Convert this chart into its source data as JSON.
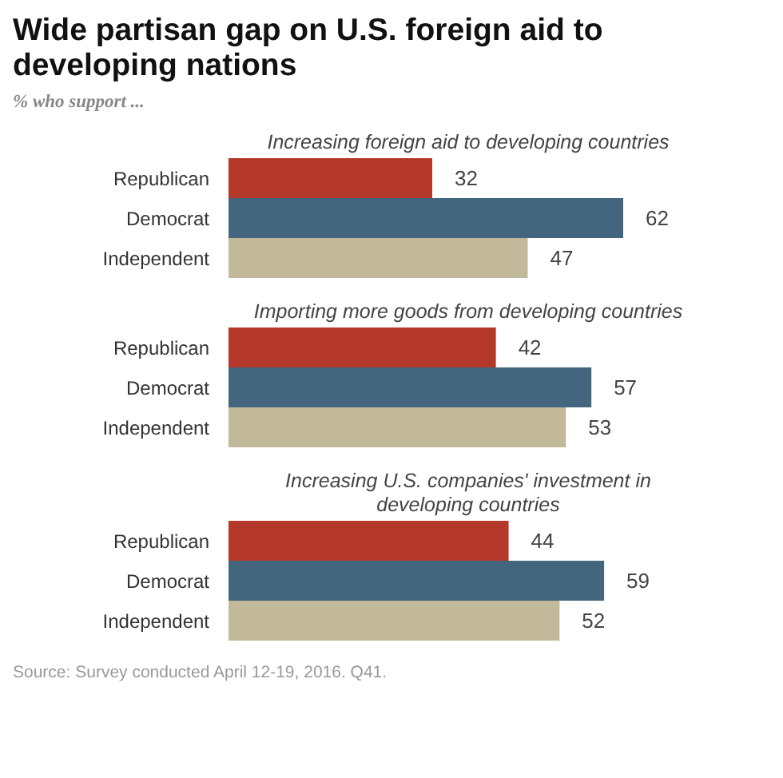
{
  "chart_data": [
    {
      "type": "other",
      "title": "Wide partisan gap on U.S. foreign aid to developing nations",
      "subtitle": "% who support  ..."
    },
    {
      "type": "bar",
      "orientation": "horizontal",
      "title": "Increasing foreign aid to developing countries",
      "categories": [
        "Republican",
        "Democrat",
        "Independent"
      ],
      "values": [
        32,
        62,
        47
      ],
      "colors": [
        "#b5392a",
        "#43657e",
        "#c2b99a"
      ],
      "data_labels": true
    },
    {
      "type": "bar",
      "orientation": "horizontal",
      "title": "Importing more goods from developing countries",
      "categories": [
        "Republican",
        "Democrat",
        "Independent"
      ],
      "values": [
        42,
        57,
        53
      ],
      "colors": [
        "#b5392a",
        "#43657e",
        "#c2b99a"
      ],
      "data_labels": true
    },
    {
      "type": "bar",
      "orientation": "horizontal",
      "title": "Increasing U.S. companies' investment in developing countries",
      "categories": [
        "Republican",
        "Democrat",
        "Independent"
      ],
      "values": [
        44,
        59,
        52
      ],
      "colors": [
        "#b5392a",
        "#43657e",
        "#c2b99a"
      ],
      "data_labels": true,
      "annotations": [
        "Source: Survey conducted April 12-19, 2016. Q41."
      ]
    }
  ]
}
